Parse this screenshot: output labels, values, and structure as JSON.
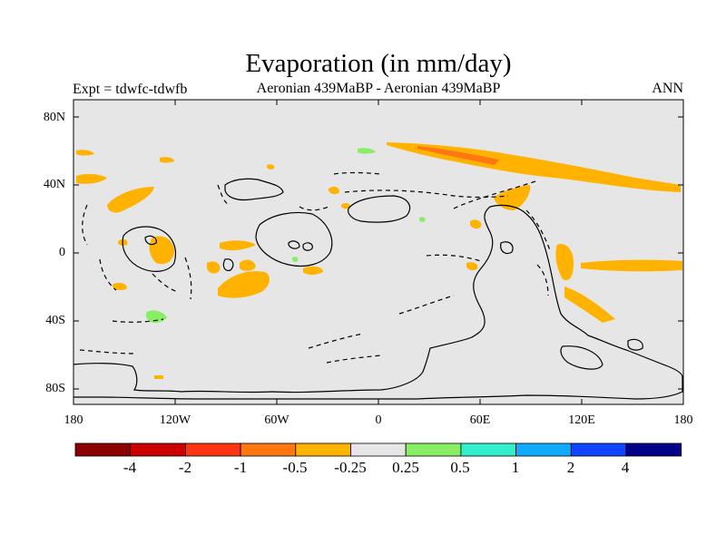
{
  "header": {
    "title": "Evaporation (in mm/day)",
    "left": "Expt = tdwfc-tdwfb",
    "center": "Aeronian 439MaBP - Aeronian 439MaBP",
    "right": "ANN"
  },
  "axes": {
    "y_ticks": [
      "80N",
      "40N",
      "0",
      "40S",
      "80S"
    ],
    "x_ticks": [
      "180",
      "120W",
      "60W",
      "0",
      "60E",
      "120E",
      "180"
    ]
  },
  "colorbar": {
    "labels": [
      "-4",
      "-2",
      "-1",
      "-0.5",
      "-0.25",
      "0.25",
      "0.5",
      "1",
      "2",
      "4"
    ],
    "colors": [
      "#8b0000",
      "#cc0000",
      "#ff3311",
      "#ff7711",
      "#ffb300",
      "#e6e6e6",
      "#88ee66",
      "#33eecc",
      "#11aaff",
      "#1144ff",
      "#000088"
    ]
  },
  "map": {
    "background": "#e6e6e6",
    "lon_range": [
      -180,
      180
    ],
    "lat_range": [
      -90,
      90
    ]
  }
}
